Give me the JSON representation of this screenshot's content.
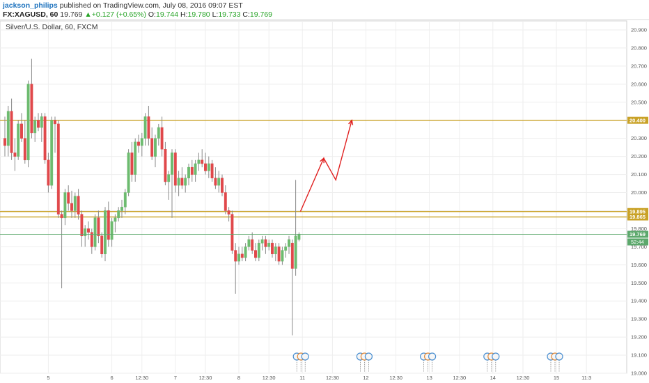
{
  "header": {
    "author": "jackson_philips",
    "published_text": "published on TradingView.com, July 08, 2016 09:07 EST",
    "symbol_line": "FX:XAGUSD, 60",
    "last": "19.769",
    "change_arrow": "▲",
    "change": "+0.127 (+0.65%)",
    "o_label": "O:",
    "o": "19.744",
    "h_label": "H:",
    "h": "19.780",
    "l_label": "L:",
    "l": "19.733",
    "c_label": "C:",
    "c": "19.769"
  },
  "colors": {
    "up": "#6dbb6f",
    "down": "#e0484b",
    "hline": "#c9a227",
    "arrow": "#e02020",
    "grid": "#eeeeee",
    "last_price": "#5ca86c"
  },
  "chart_data": {
    "type": "candlestick",
    "title": "Silver/U.S. Dollar, 60, FXCM",
    "ylim": [
      19.0,
      20.95
    ],
    "y_ticks": [
      "19.000",
      "19.100",
      "19.200",
      "19.300",
      "19.400",
      "19.500",
      "19.600",
      "19.700",
      "19.800",
      "19.900",
      "20.000",
      "20.100",
      "20.200",
      "20.300",
      "20.400",
      "20.500",
      "20.600",
      "20.700",
      "20.800",
      "20.900"
    ],
    "x_ticks": [
      {
        "label": "5",
        "bar": 13
      },
      {
        "label": "6",
        "bar": 32
      },
      {
        "label": "12:30",
        "bar": 41
      },
      {
        "label": "7",
        "bar": 51
      },
      {
        "label": "12:30",
        "bar": 60
      },
      {
        "label": "8",
        "bar": 70
      },
      {
        "label": "12:30",
        "bar": 79
      },
      {
        "label": "11",
        "bar": 89
      },
      {
        "label": "12:30",
        "bar": 98
      },
      {
        "label": "12",
        "bar": 108
      },
      {
        "label": "12:30",
        "bar": 117
      },
      {
        "label": "13",
        "bar": 127
      },
      {
        "label": "12:30",
        "bar": 136
      },
      {
        "label": "14",
        "bar": 146
      },
      {
        "label": "12:30",
        "bar": 155
      },
      {
        "label": "15",
        "bar": 165
      },
      {
        "label": "11:3",
        "bar": 174
      }
    ],
    "horizontal_lines": [
      {
        "price": 20.4,
        "label": "20.400"
      },
      {
        "price": 19.895,
        "label": "19.895"
      },
      {
        "price": 19.865,
        "label": "19.865"
      }
    ],
    "last_price": {
      "price": 19.769,
      "label": "19.769",
      "countdown": "52:44"
    },
    "candles": [
      {
        "o": 20.3,
        "h": 20.42,
        "l": 20.2,
        "c": 20.26
      },
      {
        "o": 20.26,
        "h": 20.48,
        "l": 20.2,
        "c": 20.45
      },
      {
        "o": 20.45,
        "h": 20.52,
        "l": 20.18,
        "c": 20.22
      },
      {
        "o": 20.22,
        "h": 20.3,
        "l": 20.12,
        "c": 20.2
      },
      {
        "o": 20.2,
        "h": 20.4,
        "l": 20.18,
        "c": 20.38
      },
      {
        "o": 20.38,
        "h": 20.44,
        "l": 20.28,
        "c": 20.3
      },
      {
        "o": 20.3,
        "h": 20.4,
        "l": 20.16,
        "c": 20.18
      },
      {
        "o": 20.18,
        "h": 20.62,
        "l": 20.14,
        "c": 20.6
      },
      {
        "o": 20.6,
        "h": 20.74,
        "l": 20.3,
        "c": 20.33
      },
      {
        "o": 20.33,
        "h": 20.42,
        "l": 20.28,
        "c": 20.4
      },
      {
        "o": 20.4,
        "h": 20.44,
        "l": 20.34,
        "c": 20.36
      },
      {
        "o": 20.36,
        "h": 20.44,
        "l": 20.28,
        "c": 20.42
      },
      {
        "o": 20.42,
        "h": 20.44,
        "l": 20.16,
        "c": 20.18
      },
      {
        "o": 20.18,
        "h": 20.22,
        "l": 20.0,
        "c": 20.04
      },
      {
        "o": 20.04,
        "h": 20.42,
        "l": 20.02,
        "c": 20.4
      },
      {
        "o": 20.4,
        "h": 20.42,
        "l": 20.22,
        "c": 20.38
      },
      {
        "o": 20.38,
        "h": 20.4,
        "l": 19.86,
        "c": 19.88
      },
      {
        "o": 19.88,
        "h": 19.9,
        "l": 19.47,
        "c": 19.86
      },
      {
        "o": 19.86,
        "h": 20.02,
        "l": 19.82,
        "c": 20.0
      },
      {
        "o": 20.0,
        "h": 20.04,
        "l": 19.9,
        "c": 19.94
      },
      {
        "o": 19.94,
        "h": 20.01,
        "l": 19.86,
        "c": 19.9
      },
      {
        "o": 19.9,
        "h": 20.0,
        "l": 19.86,
        "c": 19.98
      },
      {
        "o": 19.98,
        "h": 20.02,
        "l": 19.85,
        "c": 19.88
      },
      {
        "o": 19.88,
        "h": 19.9,
        "l": 19.7,
        "c": 19.76
      },
      {
        "o": 19.76,
        "h": 19.82,
        "l": 19.7,
        "c": 19.8
      },
      {
        "o": 19.8,
        "h": 19.84,
        "l": 19.74,
        "c": 19.78
      },
      {
        "o": 19.78,
        "h": 19.8,
        "l": 19.66,
        "c": 19.7
      },
      {
        "o": 19.7,
        "h": 19.88,
        "l": 19.68,
        "c": 19.86
      },
      {
        "o": 19.86,
        "h": 19.9,
        "l": 19.72,
        "c": 19.76
      },
      {
        "o": 19.76,
        "h": 19.78,
        "l": 19.64,
        "c": 19.66
      },
      {
        "o": 19.66,
        "h": 19.92,
        "l": 19.62,
        "c": 19.9
      },
      {
        "o": 19.9,
        "h": 19.95,
        "l": 19.7,
        "c": 19.74
      },
      {
        "o": 19.74,
        "h": 19.86,
        "l": 19.7,
        "c": 19.84
      },
      {
        "o": 19.84,
        "h": 19.88,
        "l": 19.78,
        "c": 19.86
      },
      {
        "o": 19.86,
        "h": 19.92,
        "l": 19.84,
        "c": 19.9
      },
      {
        "o": 19.9,
        "h": 19.96,
        "l": 19.86,
        "c": 19.92
      },
      {
        "o": 19.92,
        "h": 20.02,
        "l": 19.88,
        "c": 20.0
      },
      {
        "o": 20.0,
        "h": 20.24,
        "l": 19.98,
        "c": 20.22
      },
      {
        "o": 20.22,
        "h": 20.28,
        "l": 20.06,
        "c": 20.1
      },
      {
        "o": 20.1,
        "h": 20.3,
        "l": 20.06,
        "c": 20.28
      },
      {
        "o": 20.28,
        "h": 20.32,
        "l": 20.22,
        "c": 20.26
      },
      {
        "o": 20.26,
        "h": 20.33,
        "l": 20.2,
        "c": 20.3
      },
      {
        "o": 20.3,
        "h": 20.44,
        "l": 20.26,
        "c": 20.42
      },
      {
        "o": 20.42,
        "h": 20.48,
        "l": 20.26,
        "c": 20.3
      },
      {
        "o": 20.3,
        "h": 20.36,
        "l": 20.18,
        "c": 20.2
      },
      {
        "o": 20.2,
        "h": 20.32,
        "l": 20.14,
        "c": 20.3
      },
      {
        "o": 20.3,
        "h": 20.38,
        "l": 20.26,
        "c": 20.36
      },
      {
        "o": 20.36,
        "h": 20.42,
        "l": 20.2,
        "c": 20.24
      },
      {
        "o": 20.24,
        "h": 20.28,
        "l": 20.04,
        "c": 20.06
      },
      {
        "o": 20.06,
        "h": 20.12,
        "l": 19.96,
        "c": 20.1
      },
      {
        "o": 20.1,
        "h": 20.24,
        "l": 19.86,
        "c": 20.22
      },
      {
        "o": 20.22,
        "h": 20.24,
        "l": 20.0,
        "c": 20.04
      },
      {
        "o": 20.04,
        "h": 20.12,
        "l": 19.98,
        "c": 20.08
      },
      {
        "o": 20.08,
        "h": 20.14,
        "l": 20.02,
        "c": 20.04
      },
      {
        "o": 20.04,
        "h": 20.1,
        "l": 20.0,
        "c": 20.08
      },
      {
        "o": 20.08,
        "h": 20.16,
        "l": 20.04,
        "c": 20.14
      },
      {
        "o": 20.14,
        "h": 20.18,
        "l": 20.06,
        "c": 20.1
      },
      {
        "o": 20.1,
        "h": 20.18,
        "l": 20.06,
        "c": 20.16
      },
      {
        "o": 20.16,
        "h": 20.22,
        "l": 20.12,
        "c": 20.18
      },
      {
        "o": 20.18,
        "h": 20.24,
        "l": 20.14,
        "c": 20.16
      },
      {
        "o": 20.16,
        "h": 20.22,
        "l": 20.1,
        "c": 20.12
      },
      {
        "o": 20.12,
        "h": 20.2,
        "l": 20.08,
        "c": 20.16
      },
      {
        "o": 20.16,
        "h": 20.18,
        "l": 20.06,
        "c": 20.08
      },
      {
        "o": 20.08,
        "h": 20.14,
        "l": 20.02,
        "c": 20.04
      },
      {
        "o": 20.04,
        "h": 20.12,
        "l": 20.0,
        "c": 20.08
      },
      {
        "o": 20.08,
        "h": 20.1,
        "l": 19.98,
        "c": 20.0
      },
      {
        "o": 20.0,
        "h": 20.04,
        "l": 19.88,
        "c": 19.9
      },
      {
        "o": 19.9,
        "h": 19.92,
        "l": 19.84,
        "c": 19.88
      },
      {
        "o": 19.88,
        "h": 19.9,
        "l": 19.66,
        "c": 19.68
      },
      {
        "o": 19.68,
        "h": 19.72,
        "l": 19.44,
        "c": 19.62
      },
      {
        "o": 19.62,
        "h": 19.7,
        "l": 19.6,
        "c": 19.66
      },
      {
        "o": 19.66,
        "h": 19.7,
        "l": 19.62,
        "c": 19.64
      },
      {
        "o": 19.64,
        "h": 19.72,
        "l": 19.62,
        "c": 19.7
      },
      {
        "o": 19.7,
        "h": 19.76,
        "l": 19.68,
        "c": 19.74
      },
      {
        "o": 19.74,
        "h": 19.78,
        "l": 19.66,
        "c": 19.68
      },
      {
        "o": 19.68,
        "h": 19.72,
        "l": 19.62,
        "c": 19.64
      },
      {
        "o": 19.64,
        "h": 19.74,
        "l": 19.62,
        "c": 19.72
      },
      {
        "o": 19.72,
        "h": 19.76,
        "l": 19.68,
        "c": 19.74
      },
      {
        "o": 19.74,
        "h": 19.76,
        "l": 19.66,
        "c": 19.7
      },
      {
        "o": 19.7,
        "h": 19.74,
        "l": 19.68,
        "c": 19.72
      },
      {
        "o": 19.72,
        "h": 19.74,
        "l": 19.64,
        "c": 19.66
      },
      {
        "o": 19.66,
        "h": 19.72,
        "l": 19.62,
        "c": 19.7
      },
      {
        "o": 19.7,
        "h": 19.72,
        "l": 19.6,
        "c": 19.62
      },
      {
        "o": 19.62,
        "h": 19.7,
        "l": 19.6,
        "c": 19.68
      },
      {
        "o": 19.68,
        "h": 19.72,
        "l": 19.64,
        "c": 19.7
      },
      {
        "o": 19.7,
        "h": 19.76,
        "l": 19.66,
        "c": 19.74
      },
      {
        "o": 19.72,
        "h": 19.74,
        "l": 19.21,
        "c": 19.58
      },
      {
        "o": 19.58,
        "h": 20.07,
        "l": 19.54,
        "c": 19.76
      },
      {
        "o": 19.74,
        "h": 19.78,
        "l": 19.73,
        "c": 19.77
      }
    ],
    "events_at_bars": [
      89,
      108,
      127,
      146,
      165
    ]
  }
}
